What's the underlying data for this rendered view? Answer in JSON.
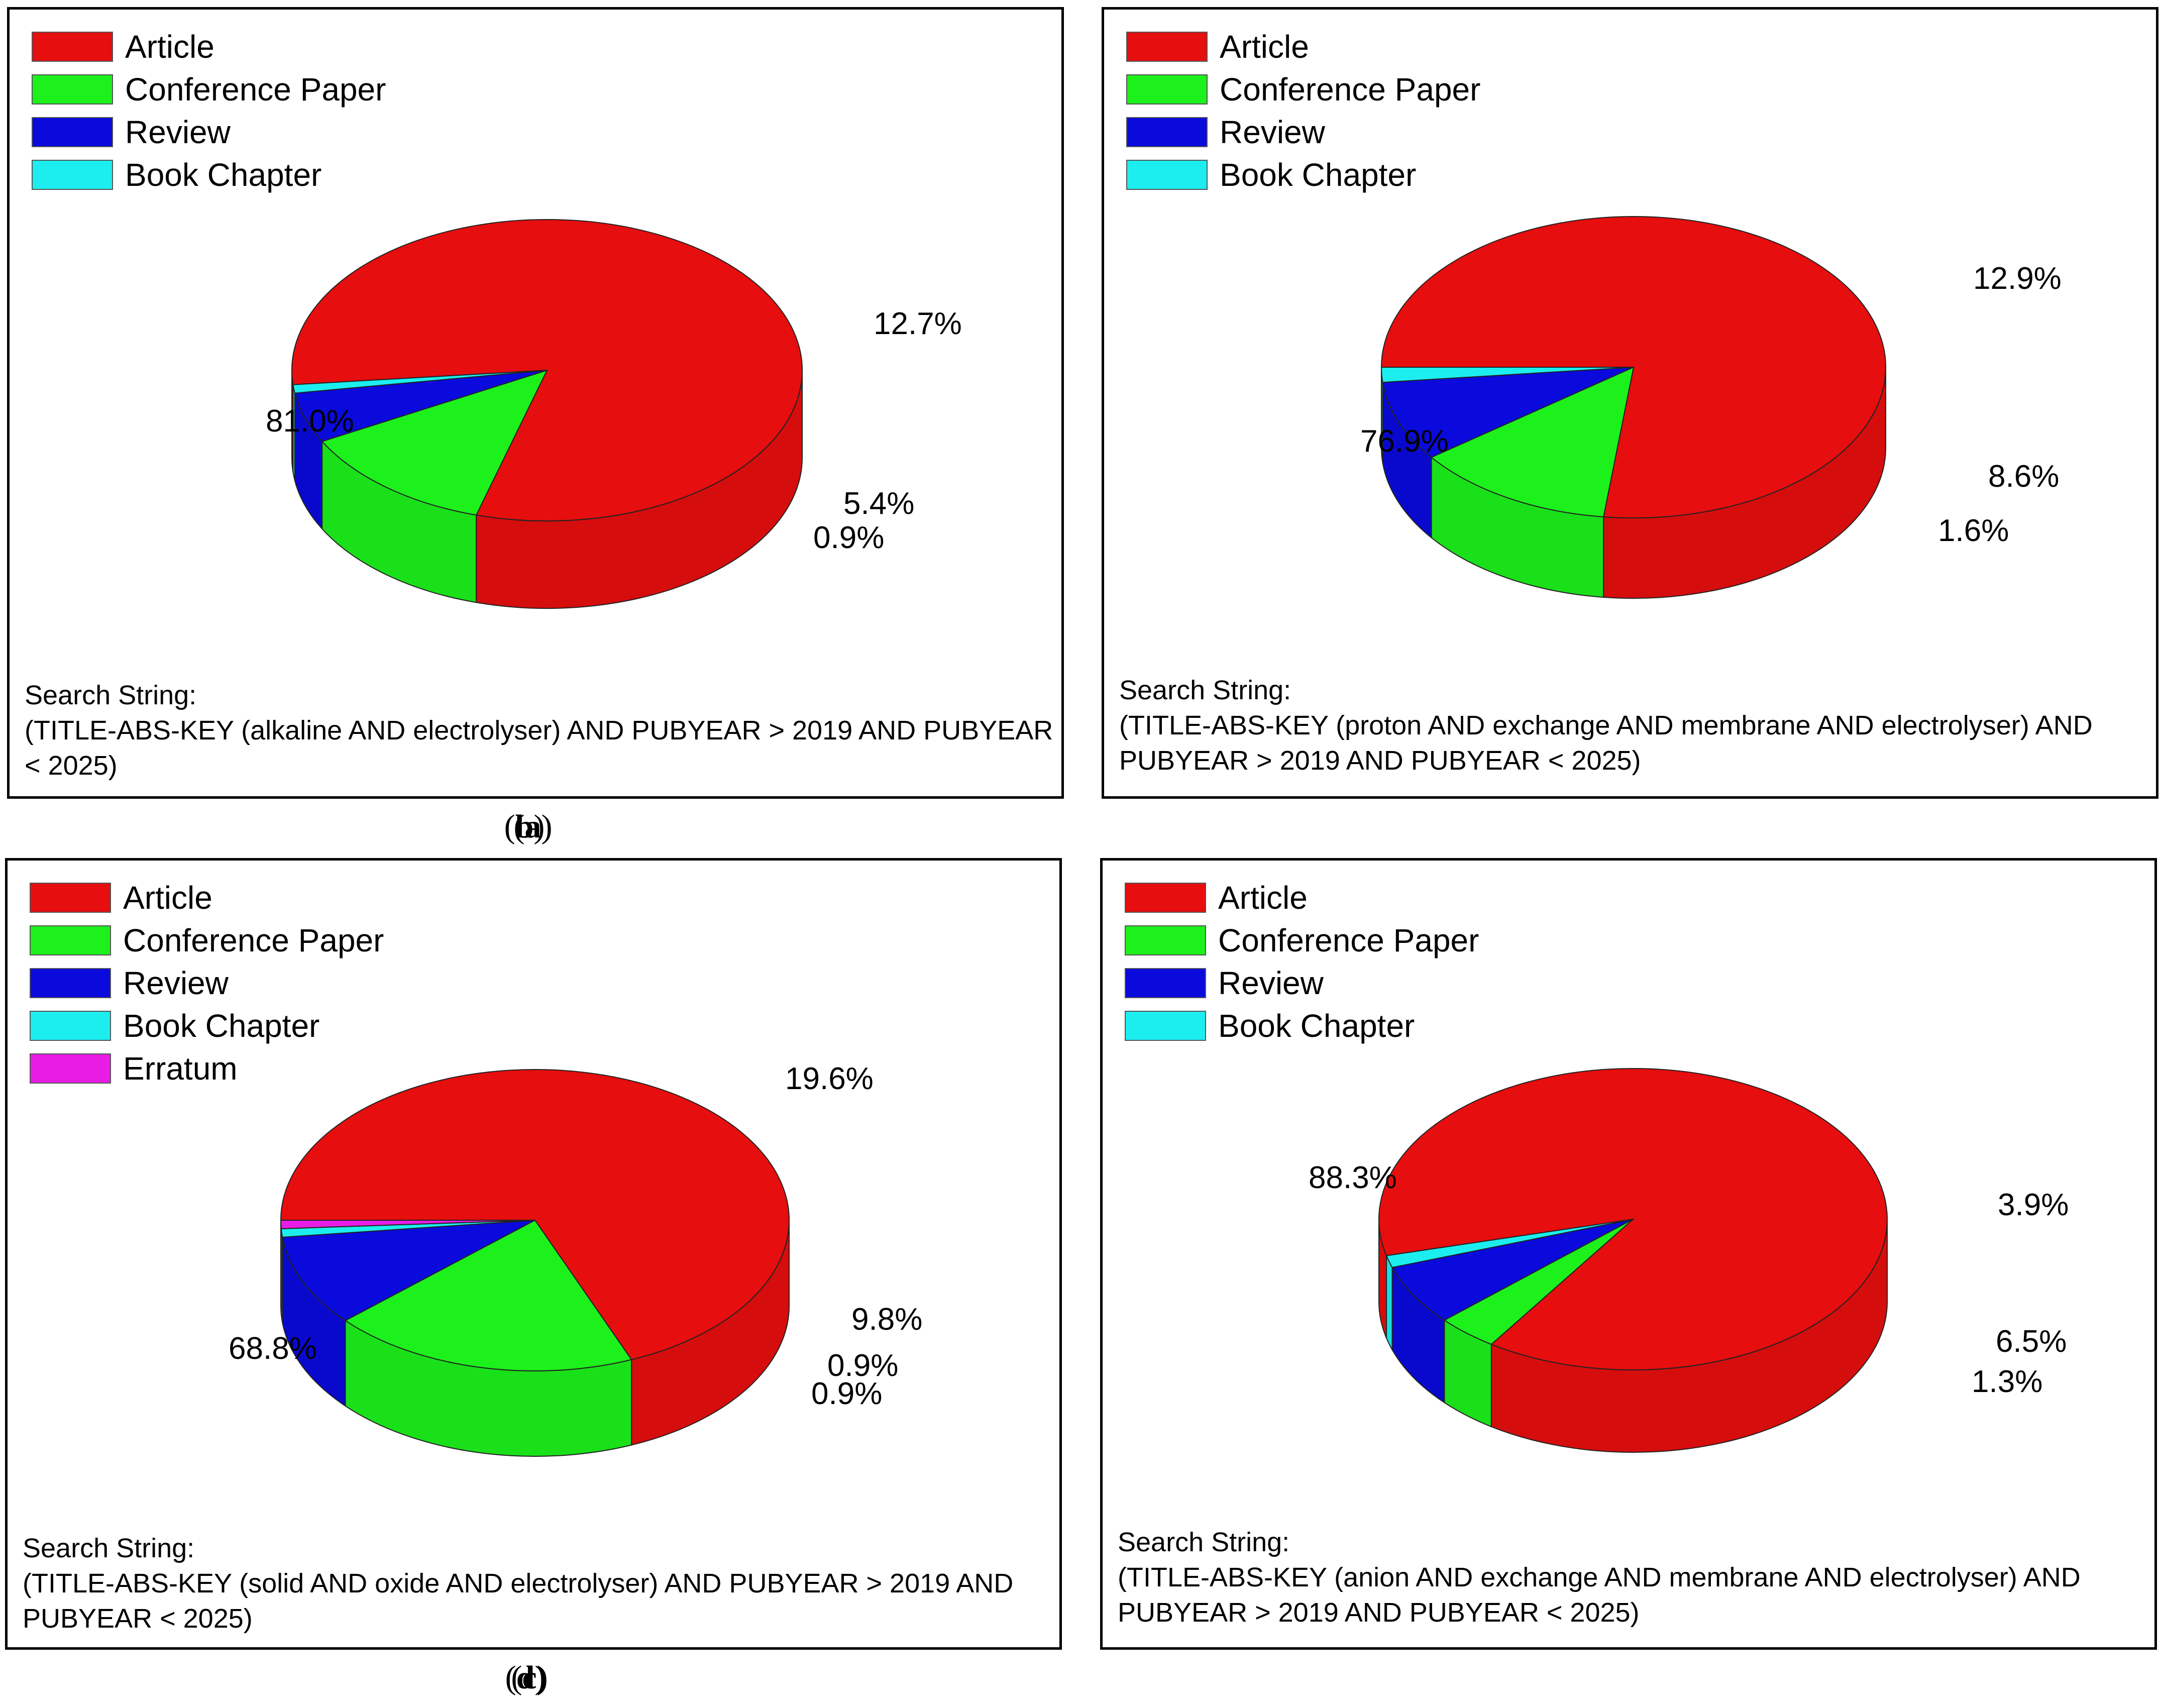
{
  "legend_colors": {
    "Article": "#E60E0E",
    "Conference Paper": "#1CF11C",
    "Review": "#0A0ADD",
    "Book Chapter": "#1CEEF0",
    "Erratum": "#E81CE4"
  },
  "chart_data": [
    {
      "type": "pie",
      "style": "3d",
      "caption": "a",
      "legend": [
        "Article",
        "Conference Paper",
        "Review",
        "Book Chapter"
      ],
      "slices": [
        {
          "name": "Article",
          "value": 81.0,
          "label": "81.0%"
        },
        {
          "name": "Conference Paper",
          "value": 12.7,
          "label": "12.7%"
        },
        {
          "name": "Review",
          "value": 5.4,
          "label": "5.4%"
        },
        {
          "name": "Book Chapter",
          "value": 0.9,
          "label": "0.9%"
        }
      ],
      "search_string": {
        "heading": "Search String:",
        "lines": [
          "(TITLE-ABS-KEY (alkaline AND electrolyser) AND PUBYEAR > 2019 AND PUBYEAR",
          "< 2025)"
        ]
      }
    },
    {
      "type": "pie",
      "style": "3d",
      "caption": "b",
      "legend": [
        "Article",
        "Conference Paper",
        "Review",
        "Book Chapter"
      ],
      "slices": [
        {
          "name": "Article",
          "value": 76.9,
          "label": "76.9%"
        },
        {
          "name": "Conference Paper",
          "value": 12.9,
          "label": "12.9%"
        },
        {
          "name": "Review",
          "value": 8.6,
          "label": "8.6%"
        },
        {
          "name": "Book Chapter",
          "value": 1.6,
          "label": "1.6%"
        }
      ],
      "search_string": {
        "heading": "Search String:",
        "lines": [
          "(TITLE-ABS-KEY (proton AND exchange AND membrane AND electrolyser) AND",
          "PUBYEAR > 2019 AND PUBYEAR < 2025)"
        ]
      }
    },
    {
      "type": "pie",
      "style": "3d",
      "caption": "c",
      "legend": [
        "Article",
        "Conference Paper",
        "Review",
        "Book Chapter",
        "Erratum"
      ],
      "slices": [
        {
          "name": "Article",
          "value": 68.8,
          "label": "68.8%"
        },
        {
          "name": "Conference Paper",
          "value": 19.6,
          "label": "19.6%"
        },
        {
          "name": "Review",
          "value": 9.8,
          "label": "9.8%"
        },
        {
          "name": "Book Chapter",
          "value": 0.9,
          "label": "0.9%"
        },
        {
          "name": "Erratum",
          "value": 0.9,
          "label": "0.9%"
        }
      ],
      "search_string": {
        "heading": "Search String:",
        "lines": [
          "(TITLE-ABS-KEY (solid AND oxide AND electrolyser) AND PUBYEAR > 2019 AND",
          "PUBYEAR < 2025)"
        ]
      }
    },
    {
      "type": "pie",
      "style": "3d",
      "caption": "d",
      "legend": [
        "Article",
        "Conference Paper",
        "Review",
        "Book Chapter"
      ],
      "slices": [
        {
          "name": "Article",
          "value": 88.3,
          "label": "88.3%"
        },
        {
          "name": "Conference Paper",
          "value": 3.9,
          "label": "3.9%"
        },
        {
          "name": "Review",
          "value": 6.5,
          "label": "6.5%"
        },
        {
          "name": "Book Chapter",
          "value": 1.3,
          "label": "1.3%"
        }
      ],
      "search_string": {
        "heading": "Search String:",
        "lines": [
          "(TITLE-ABS-KEY (anion AND exchange AND membrane AND electrolyser) AND",
          "PUBYEAR > 2019 AND PUBYEAR < 2025)"
        ]
      }
    }
  ]
}
